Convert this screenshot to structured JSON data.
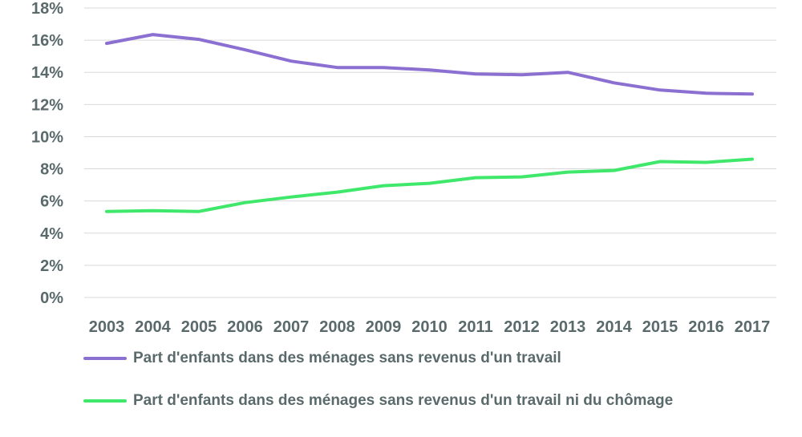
{
  "chart_data": {
    "type": "line",
    "categories": [
      "2003",
      "2004",
      "2005",
      "2006",
      "2007",
      "2008",
      "2009",
      "2010",
      "2011",
      "2012",
      "2013",
      "2014",
      "2015",
      "2016",
      "2017"
    ],
    "series": [
      {
        "name": "Part d'enfants dans des ménages sans revenus d'un travail",
        "color": "#8b6fd1",
        "values": [
          15.8,
          16.35,
          16.05,
          15.4,
          14.7,
          14.3,
          14.3,
          14.15,
          13.9,
          13.85,
          14.0,
          13.35,
          12.9,
          12.7,
          12.65
        ]
      },
      {
        "name": "Part d'enfants dans des ménages sans revenus d'un travail ni du chômage",
        "color": "#3fe86a",
        "values": [
          5.35,
          5.4,
          5.35,
          5.9,
          6.25,
          6.55,
          6.95,
          7.1,
          7.45,
          7.5,
          7.8,
          7.9,
          8.45,
          8.4,
          8.6
        ]
      }
    ],
    "yticks": [
      "0%",
      "2%",
      "4%",
      "6%",
      "8%",
      "10%",
      "12%",
      "14%",
      "16%",
      "18%"
    ],
    "ylim": [
      0,
      18
    ],
    "grid": true,
    "legend_position": "bottom-left"
  }
}
